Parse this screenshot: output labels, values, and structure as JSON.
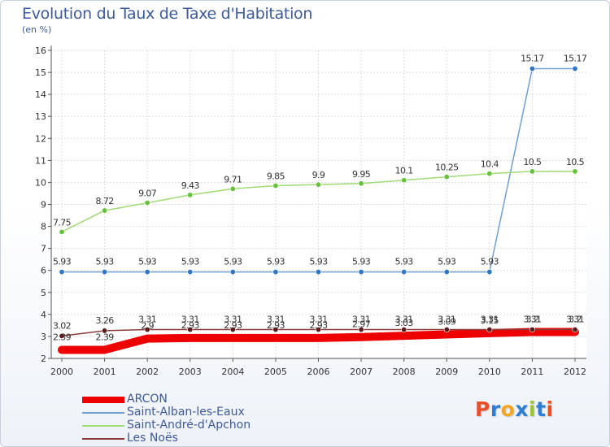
{
  "title": "Evolution du Taux de Taxe d'Habitation",
  "unit_label": "(en %)",
  "logo": {
    "text": "Proxiti",
    "colors": [
      "#e8502a",
      "#2e7fd1",
      "#f4a623",
      "#2e7fd1",
      "#9bc43b",
      "#2e7fd1",
      "#e8502a"
    ]
  },
  "chart_data": {
    "type": "line",
    "x": [
      "2000",
      "2001",
      "2002",
      "2003",
      "2004",
      "2005",
      "2006",
      "2007",
      "2008",
      "2009",
      "2010",
      "2011",
      "2012"
    ],
    "ylim": [
      2,
      16
    ],
    "yticks": [
      "2",
      "3",
      "4",
      "5",
      "6",
      "7",
      "8",
      "9",
      "10",
      "11",
      "12",
      "13",
      "14",
      "15",
      "16"
    ],
    "grid": true,
    "legend_position": "bottom-left",
    "series": [
      {
        "name": "ARCON",
        "color": "#ee0000",
        "thick": true,
        "values": [
          2.39,
          2.39,
          2.9,
          2.93,
          2.93,
          2.93,
          2.93,
          2.97,
          3.03,
          3.09,
          3.15,
          3.2,
          3.2
        ],
        "labels": [
          "2.39",
          "2.39",
          "2.9",
          "2.93",
          "2.93",
          "2.93",
          "2.93",
          "2.97",
          "3.03",
          "3.09",
          "3.15",
          "3.2",
          "3.2"
        ]
      },
      {
        "name": "Saint-Alban-les-Eaux",
        "color": "#6fa0d0",
        "marker": "#2e76c5",
        "values": [
          5.93,
          5.93,
          5.93,
          5.93,
          5.93,
          5.93,
          5.93,
          5.93,
          5.93,
          5.93,
          5.93,
          15.17,
          15.17
        ],
        "labels": [
          "5.93",
          "5.93",
          "5.93",
          "5.93",
          "5.93",
          "5.93",
          "5.93",
          "5.93",
          "5.93",
          "5.93",
          "5.93",
          "15.17",
          "15.17"
        ]
      },
      {
        "name": "Saint-André-d'Apchon",
        "color": "#9fdb76",
        "marker": "#66c23a",
        "values": [
          7.75,
          8.72,
          9.07,
          9.43,
          9.71,
          9.85,
          9.9,
          9.95,
          10.1,
          10.25,
          10.4,
          10.5,
          10.5
        ],
        "labels": [
          "7.75",
          "8.72",
          "9.07",
          "9.43",
          "9.71",
          "9.85",
          "9.9",
          "9.95",
          "10.1",
          "10.25",
          "10.4",
          "10.5",
          "10.5"
        ]
      },
      {
        "name": "Les Noës",
        "color": "#8b3a3a",
        "marker": "#5c1a1a",
        "values": [
          3.02,
          3.26,
          3.31,
          3.31,
          3.31,
          3.31,
          3.31,
          3.31,
          3.31,
          3.31,
          3.31,
          3.31,
          3.31
        ],
        "labels": [
          "3.02",
          "3.26",
          "3.31",
          "3.31",
          "3.31",
          "3.31",
          "3.31",
          "3.31",
          "3.31",
          "3.31",
          "3.31",
          "3.31",
          "3.31"
        ]
      }
    ]
  }
}
